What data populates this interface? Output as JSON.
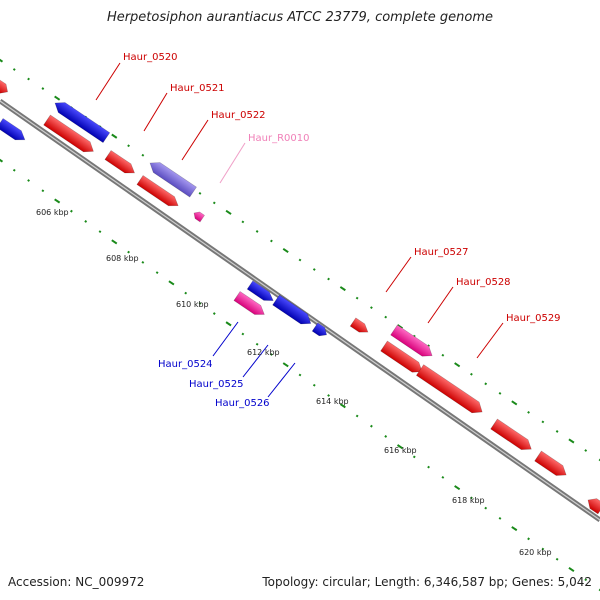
{
  "title": "Herpetosiphon aurantiacus ATCC 23779, complete genome",
  "footer": {
    "accession": "Accession: NC_009972",
    "topology": "Topology: circular; Length: 6,346,587 bp; Genes: 5,042"
  },
  "colors": {
    "forward_gene": "#ff0000",
    "reverse_gene": "#0000ff",
    "highlight_gene": "#ff2ca8",
    "rna_gene": "#7a6ad6",
    "backbone": "#888888",
    "tick_dots": "#1a8a1a"
  },
  "ticks": [
    {
      "label": "606 kbp"
    },
    {
      "label": "608 kbp"
    },
    {
      "label": "610 kbp"
    },
    {
      "label": "612 kbp"
    },
    {
      "label": "614 kbp"
    },
    {
      "label": "616 kbp"
    },
    {
      "label": "618 kbp"
    },
    {
      "label": "620 kbp"
    }
  ],
  "gene_labels": [
    {
      "name": "Haur_0520",
      "color": "#cc0000"
    },
    {
      "name": "Haur_0521",
      "color": "#cc0000"
    },
    {
      "name": "Haur_0522",
      "color": "#cc0000"
    },
    {
      "name": "Haur_R0010",
      "color": "#f080b8"
    },
    {
      "name": "Haur_0524",
      "color": "#0000cc"
    },
    {
      "name": "Haur_0525",
      "color": "#0000cc"
    },
    {
      "name": "Haur_0526",
      "color": "#0000cc"
    },
    {
      "name": "Haur_0527",
      "color": "#cc0000"
    },
    {
      "name": "Haur_0528",
      "color": "#cc0000"
    },
    {
      "name": "Haur_0529",
      "color": "#cc0000"
    }
  ]
}
